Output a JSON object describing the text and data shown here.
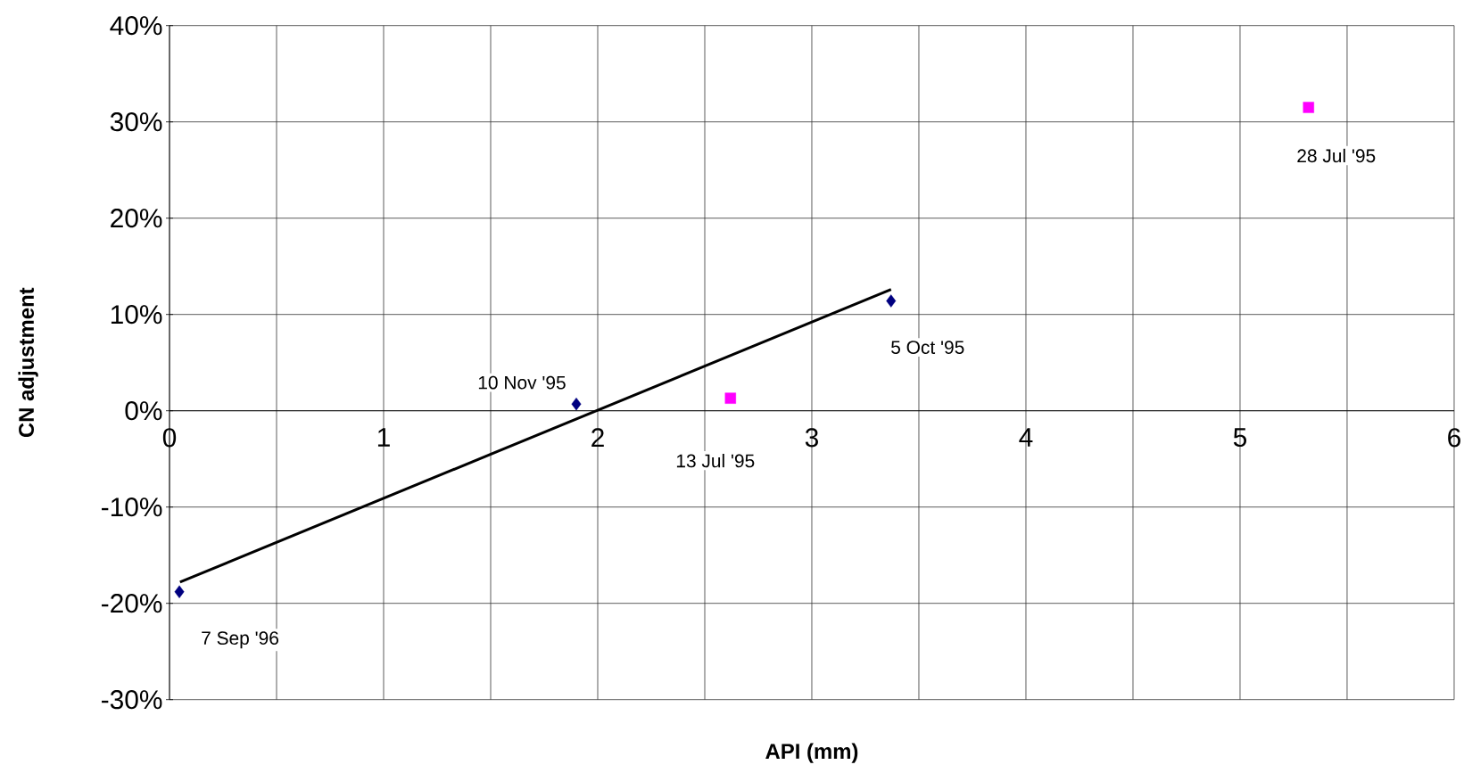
{
  "chart_data": {
    "type": "scatter",
    "xlabel": "API (mm)",
    "ylabel": "CN adjustment",
    "xlim": [
      0,
      6
    ],
    "ylim": [
      -30,
      40
    ],
    "xticks": [
      0,
      {
        "value": 0.5,
        "label": null
      },
      1,
      {
        "value": 1.5,
        "label": null
      },
      2,
      {
        "value": 2.5,
        "label": null
      },
      3,
      {
        "value": 3.5,
        "label": null
      },
      4,
      {
        "value": 4.5,
        "label": null
      },
      5,
      {
        "value": 5.5,
        "label": null
      },
      6
    ],
    "yticks": [
      {
        "value": -30,
        "label": "-30%"
      },
      {
        "value": -20,
        "label": "-20%"
      },
      {
        "value": -10,
        "label": "-10%"
      },
      {
        "value": 0,
        "label": "0%"
      },
      {
        "value": 10,
        "label": "10%"
      },
      {
        "value": 20,
        "label": "20%"
      },
      {
        "value": 30,
        "label": "30%"
      },
      {
        "value": 40,
        "label": "40%"
      }
    ],
    "grid": true,
    "series": [
      {
        "type": "scatter",
        "color": "#000080",
        "marker": "diamond",
        "x": [
          0.046,
          1.9,
          3.37
        ],
        "values": [
          -18.8,
          0.7,
          11.4
        ]
      },
      {
        "type": "scatter",
        "color": "#ff00ff",
        "marker": "square",
        "x": [
          2.62,
          5.32
        ],
        "values": [
          1.3,
          31.5
        ]
      },
      {
        "type": "line",
        "color": "#000000",
        "marker": "none",
        "x": [
          0.049,
          3.37
        ],
        "values": [
          -17.8,
          12.6
        ]
      }
    ],
    "annotations": [
      {
        "text": "7 Sep '96",
        "x": 0.046,
        "y": -18.8
      },
      {
        "text": "10 Nov '95",
        "x": 1.9,
        "y": 0.7
      },
      {
        "text": "5 Oct '95",
        "x": 3.37,
        "y": 11.4
      },
      {
        "text": "13 Jul '95",
        "x": 2.62,
        "y": 1.3
      },
      {
        "text": "28 Jul '95",
        "x": 5.32,
        "y": 31.5
      }
    ]
  }
}
